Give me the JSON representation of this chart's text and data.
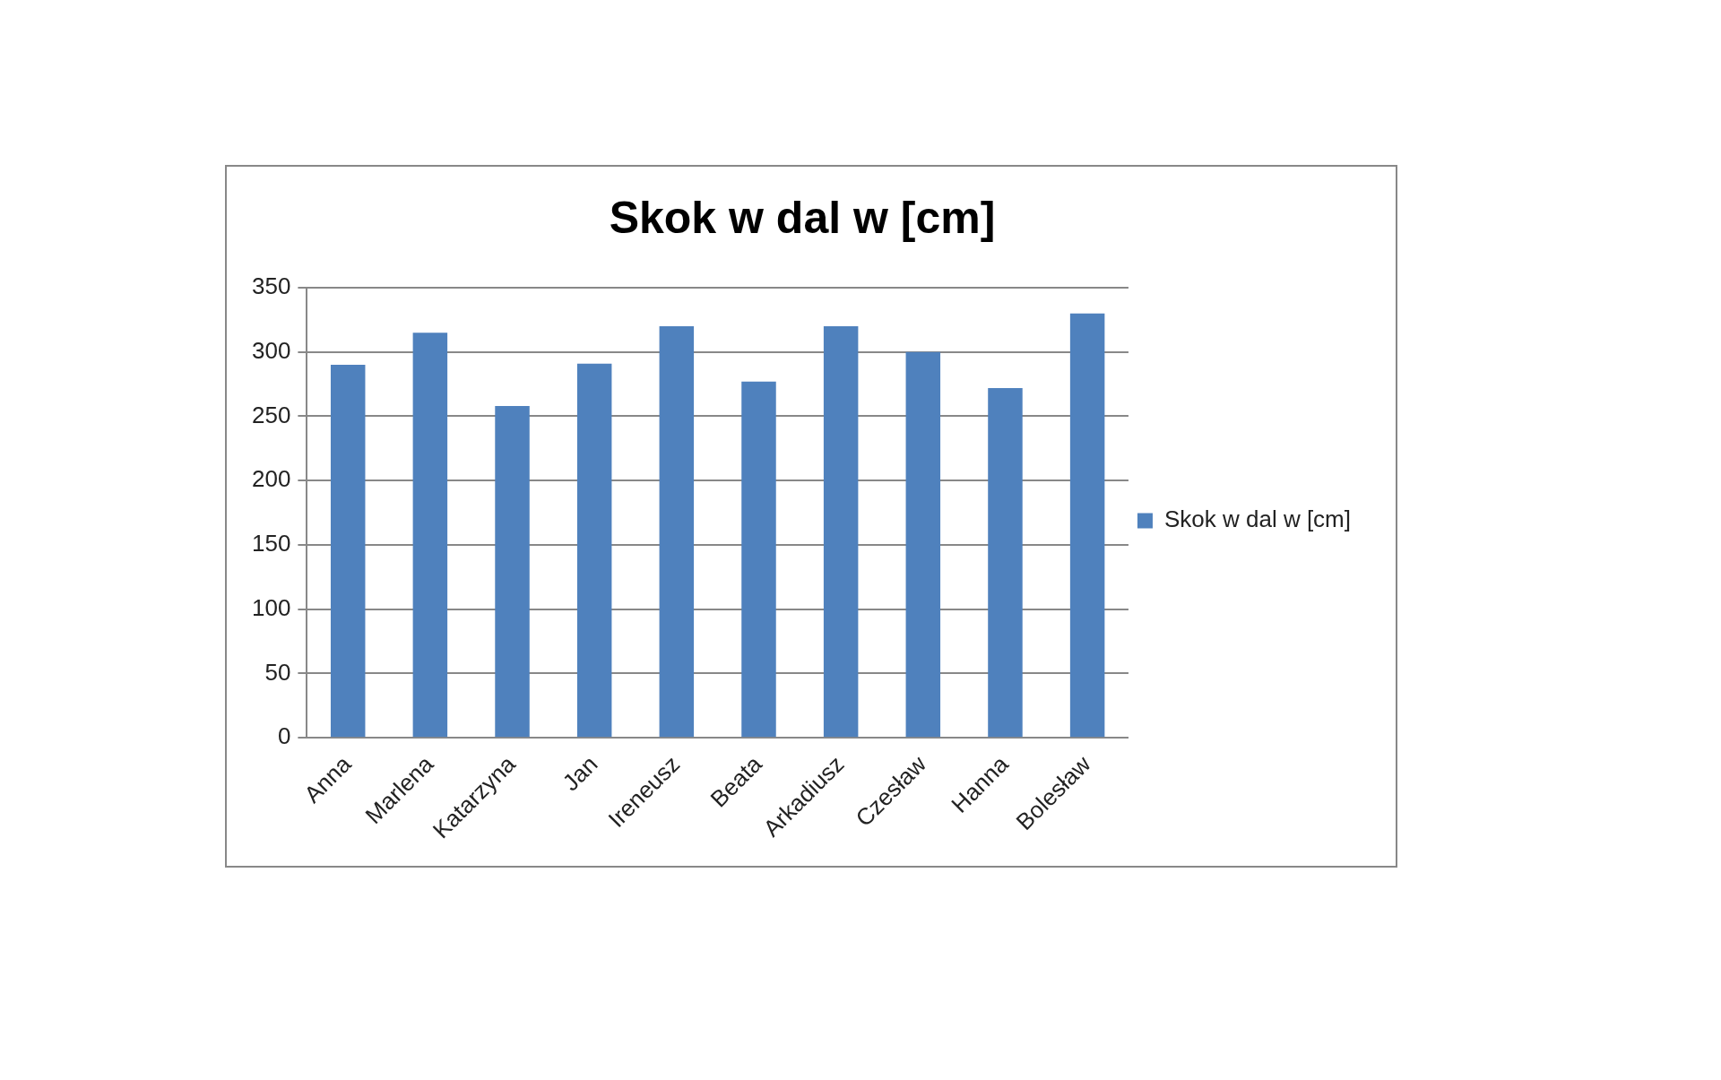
{
  "chart_data": {
    "type": "bar",
    "title": "Skok w dal w [cm]",
    "categories": [
      "Anna",
      "Marlena",
      "Katarzyna",
      "Jan",
      "Ireneusz",
      "Beata",
      "Arkadiusz",
      "Czesław",
      "Hanna",
      "Bolesław"
    ],
    "series": [
      {
        "name": "Skok w dal w [cm]",
        "color": "#4f81bd",
        "values": [
          290,
          315,
          258,
          291,
          320,
          277,
          320,
          300,
          272,
          330
        ]
      }
    ],
    "ylim": [
      0,
      350
    ],
    "yticks": [
      0,
      50,
      100,
      150,
      200,
      250,
      300,
      350
    ],
    "grid": "y",
    "legend": "right"
  }
}
